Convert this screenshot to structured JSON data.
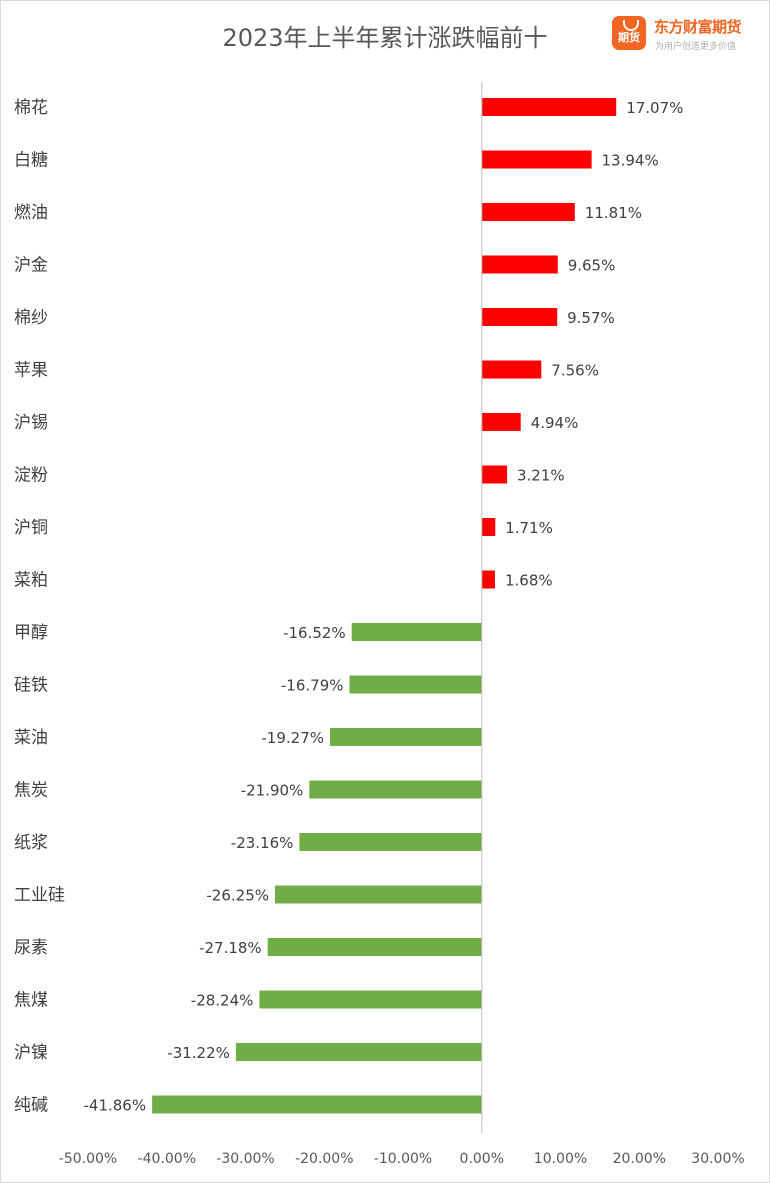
{
  "chart_data": {
    "type": "bar",
    "orientation": "horizontal",
    "title": "2023年上半年累计涨跌幅前十",
    "categories": [
      "棉花",
      "白糖",
      "燃油",
      "沪金",
      "棉纱",
      "苹果",
      "沪锡",
      "淀粉",
      "沪铜",
      "菜粕",
      "甲醇",
      "硅铁",
      "菜油",
      "焦炭",
      "纸浆",
      "工业硅",
      "尿素",
      "焦煤",
      "沪镍",
      "纯碱"
    ],
    "values": [
      17.07,
      13.94,
      11.81,
      9.65,
      9.57,
      7.56,
      4.94,
      3.21,
      1.71,
      1.68,
      -16.52,
      -16.79,
      -19.27,
      -21.9,
      -23.16,
      -26.25,
      -27.18,
      -28.24,
      -31.22,
      -41.86
    ],
    "value_labels": [
      "17.07%",
      "13.94%",
      "11.81%",
      "9.65%",
      "9.57%",
      "7.56%",
      "4.94%",
      "3.21%",
      "1.71%",
      "1.68%",
      "-16.52%",
      "-16.79%",
      "-19.27%",
      "-21.90%",
      "-23.16%",
      "-26.25%",
      "-27.18%",
      "-28.24%",
      "-31.22%",
      "-41.86%"
    ],
    "xlim": [
      -50,
      30
    ],
    "x_ticks": [
      "-50.00%",
      "-40.00%",
      "-30.00%",
      "-20.00%",
      "-10.00%",
      "0.00%",
      "10.00%",
      "20.00%",
      "30.00%"
    ],
    "x_tick_values": [
      -50,
      -40,
      -30,
      -20,
      -10,
      0,
      10,
      20,
      30
    ],
    "colors": {
      "positive": "#ff0000",
      "negative": "#70ad47",
      "axis": "#bfbfbf"
    },
    "grid": false,
    "legend": "none"
  },
  "logo": {
    "icon_text": "期货",
    "name": "东方财富期货",
    "slogan": "为用户创造更多价值"
  }
}
